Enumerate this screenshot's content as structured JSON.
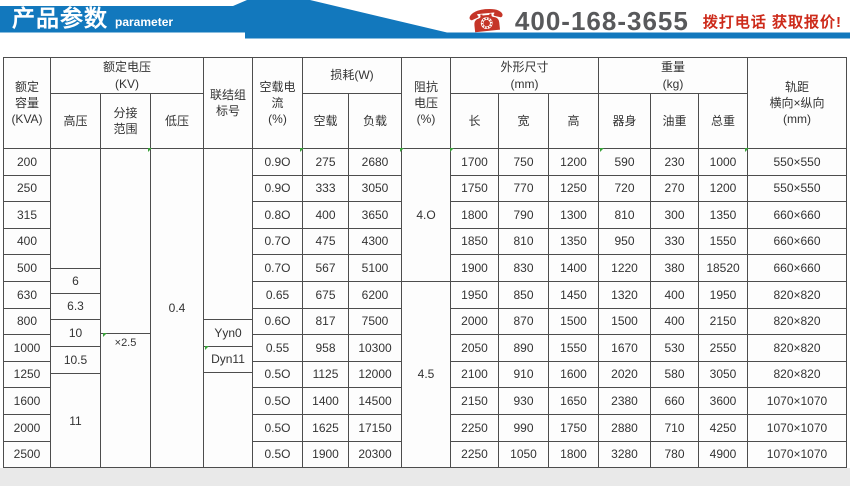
{
  "banner": {
    "title": "产品参数",
    "subtitle": "parameter",
    "phone_number": "400-168-3655",
    "phone_cta": "拨打电话 获取报价!",
    "phone_icon_glyph": "☎"
  },
  "colors": {
    "banner_blue": "#1278bd",
    "phone_red": "#cd2a1a",
    "number_gray": "#58595b",
    "table_border": "#4d4d4d",
    "bottom_strip": "#e9e9e9"
  },
  "table": {
    "headers": {
      "capacity": "额定\n容量\n(KVA)",
      "voltage_group": "额定电压\n(KV)",
      "hv": "高压",
      "tap": "分接\n范围",
      "lv": "低压",
      "vector": "联结组\n标号",
      "noload_current": "空载电\n流\n(%)",
      "loss_group": "损耗(W)",
      "loss_noload": "空载",
      "loss_load": "负载",
      "impedance": "阻抗\n电压\n(%)",
      "dims_group": "外形尺寸\n(mm)",
      "dim_l": "长",
      "dim_w": "宽",
      "dim_h": "高",
      "weight_group": "重量\n(kg)",
      "weight_body": "器身",
      "weight_oil": "油重",
      "weight_total": "总重",
      "gauge": "轨距\n横向×纵向\n(mm)"
    },
    "merged": {
      "hv_values": [
        "6",
        "6.3",
        "10",
        "10.5",
        "11"
      ],
      "tap_range": "×2.5",
      "lv_value": "0.4",
      "vector_groups": [
        "Yyn0",
        "Dyn11"
      ],
      "impedance_values": [
        "4.O",
        "4.5"
      ]
    },
    "rows": [
      {
        "capacity": "200",
        "noload_current": "0.9O",
        "loss_noload": "275",
        "loss_load": "2680",
        "length": "1700",
        "width": "750",
        "height": "1200",
        "body_weight": "590",
        "oil_weight": "230",
        "total_weight": "1000",
        "gauge": "550×550"
      },
      {
        "capacity": "250",
        "noload_current": "0.9O",
        "loss_noload": "333",
        "loss_load": "3050",
        "length": "1750",
        "width": "770",
        "height": "1250",
        "body_weight": "720",
        "oil_weight": "270",
        "total_weight": "1200",
        "gauge": "550×550"
      },
      {
        "capacity": "315",
        "noload_current": "0.8O",
        "loss_noload": "400",
        "loss_load": "3650",
        "length": "1800",
        "width": "790",
        "height": "1300",
        "body_weight": "810",
        "oil_weight": "300",
        "total_weight": "1350",
        "gauge": "660×660"
      },
      {
        "capacity": "400",
        "noload_current": "0.7O",
        "loss_noload": "475",
        "loss_load": "4300",
        "length": "1850",
        "width": "810",
        "height": "1350",
        "body_weight": "950",
        "oil_weight": "330",
        "total_weight": "1550",
        "gauge": "660×660"
      },
      {
        "capacity": "500",
        "noload_current": "0.7O",
        "loss_noload": "567",
        "loss_load": "5100",
        "length": "1900",
        "width": "830",
        "height": "1400",
        "body_weight": "1220",
        "oil_weight": "380",
        "total_weight": "18520",
        "gauge": "660×660"
      },
      {
        "capacity": "630",
        "noload_current": "0.65",
        "loss_noload": "675",
        "loss_load": "6200",
        "length": "1950",
        "width": "850",
        "height": "1450",
        "body_weight": "1320",
        "oil_weight": "400",
        "total_weight": "1950",
        "gauge": "820×820"
      },
      {
        "capacity": "800",
        "noload_current": "0.6O",
        "loss_noload": "817",
        "loss_load": "7500",
        "length": "2000",
        "width": "870",
        "height": "1500",
        "body_weight": "1500",
        "oil_weight": "400",
        "total_weight": "2150",
        "gauge": "820×820"
      },
      {
        "capacity": "1000",
        "noload_current": "0.55",
        "loss_noload": "958",
        "loss_load": "10300",
        "length": "2050",
        "width": "890",
        "height": "1550",
        "body_weight": "1670",
        "oil_weight": "530",
        "total_weight": "2550",
        "gauge": "820×820"
      },
      {
        "capacity": "1250",
        "noload_current": "0.5O",
        "loss_noload": "1125",
        "loss_load": "12000",
        "length": "2100",
        "width": "910",
        "height": "1600",
        "body_weight": "2020",
        "oil_weight": "580",
        "total_weight": "3050",
        "gauge": "820×820"
      },
      {
        "capacity": "1600",
        "noload_current": "0.5O",
        "loss_noload": "1400",
        "loss_load": "14500",
        "length": "2150",
        "width": "930",
        "height": "1650",
        "body_weight": "2380",
        "oil_weight": "660",
        "total_weight": "3600",
        "gauge": "1070×1070"
      },
      {
        "capacity": "2000",
        "noload_current": "0.5O",
        "loss_noload": "1625",
        "loss_load": "17150",
        "length": "2250",
        "width": "990",
        "height": "1750",
        "body_weight": "2880",
        "oil_weight": "710",
        "total_weight": "4250",
        "gauge": "1070×1070"
      },
      {
        "capacity": "2500",
        "noload_current": "0.5O",
        "loss_noload": "1900",
        "loss_load": "20300",
        "length": "2250",
        "width": "1050",
        "height": "1800",
        "body_weight": "3280",
        "oil_weight": "780",
        "total_weight": "4900",
        "gauge": "1070×1070"
      }
    ]
  }
}
